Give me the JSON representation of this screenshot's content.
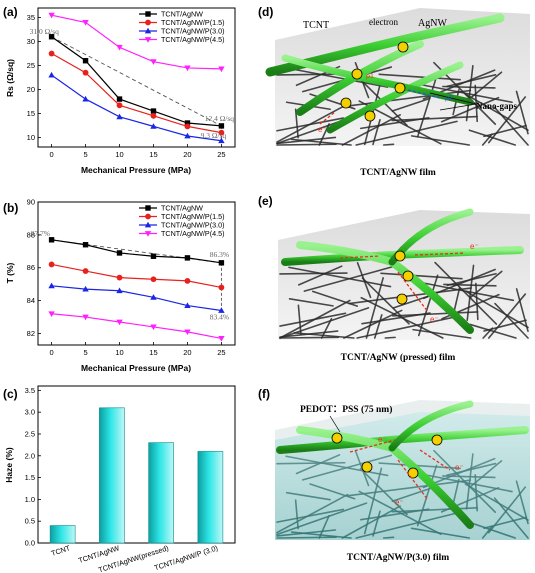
{
  "panel_labels": {
    "a": "(a)",
    "b": "(b)",
    "c": "(c)",
    "d": "(d)",
    "e": "(e)",
    "f": "(f)"
  },
  "chart_data": [
    {
      "type": "line",
      "panel": "a",
      "xlabel": "Mechanical Pressure (MPa)",
      "ylabel": "Rs (Ω/sq)",
      "x": [
        0,
        5,
        10,
        15,
        20,
        25
      ],
      "xticks": [
        "0",
        "5",
        "10",
        "15",
        "20",
        "25"
      ],
      "yticks": [
        "10",
        "15",
        "20",
        "25",
        "30",
        "35"
      ],
      "xlim": [
        -2,
        27
      ],
      "ylim": [
        8,
        37
      ],
      "grid": false,
      "legend_position": "top-right",
      "series": [
        {
          "name": "TCNT/AgNW",
          "color": "#000000",
          "marker": "square",
          "values": [
            31.0,
            26.0,
            18.0,
            15.5,
            13.0,
            12.4
          ]
        },
        {
          "name": "TCNT/AgNW/P(1.5)",
          "color": "#e8211c",
          "marker": "circle",
          "values": [
            27.5,
            23.5,
            16.7,
            14.5,
            12.3,
            11.0
          ]
        },
        {
          "name": "TCNT/AgNW/P(3.0)",
          "color": "#1a25e6",
          "marker": "triangle",
          "values": [
            23.0,
            18.0,
            14.3,
            12.3,
            10.3,
            9.3
          ]
        },
        {
          "name": "TCNT/AgNW/P(4.5)",
          "color": "#ff20ff",
          "marker": "triangle-down",
          "values": [
            35.5,
            34.0,
            28.8,
            25.8,
            24.5,
            24.3
          ]
        }
      ],
      "annotations": [
        {
          "text": "31.0 Ω/sq",
          "x": 0,
          "y": 31.0
        },
        {
          "text": "12.4 Ω/sq",
          "x": 25,
          "y": 12.4
        },
        {
          "text": "9.3 Ω/sq",
          "x": 25,
          "y": 9.3
        }
      ]
    },
    {
      "type": "line",
      "panel": "b",
      "xlabel": "Mechanical Pressure (MPa)",
      "ylabel": "T (%)",
      "x": [
        0,
        5,
        10,
        15,
        20,
        25
      ],
      "xticks": [
        "0",
        "5",
        "10",
        "15",
        "20",
        "25"
      ],
      "yticks": [
        "82",
        "84",
        "86",
        "88",
        "90"
      ],
      "xlim": [
        -2,
        27
      ],
      "ylim": [
        81.3,
        90
      ],
      "grid": false,
      "legend_position": "top-right",
      "series": [
        {
          "name": "TCNT/AgNW",
          "color": "#000000",
          "marker": "square",
          "values": [
            87.7,
            87.4,
            86.9,
            86.7,
            86.6,
            86.3
          ]
        },
        {
          "name": "TCNT/AgNW/P(1.5)",
          "color": "#e8211c",
          "marker": "circle",
          "values": [
            86.2,
            85.8,
            85.4,
            85.3,
            85.2,
            84.8
          ]
        },
        {
          "name": "TCNT/AgNW/P(3.0)",
          "color": "#1a25e6",
          "marker": "triangle",
          "values": [
            84.9,
            84.7,
            84.6,
            84.2,
            83.7,
            83.4
          ]
        },
        {
          "name": "TCNT/AgNW/P(4.5)",
          "color": "#ff20ff",
          "marker": "triangle-down",
          "values": [
            83.2,
            83.0,
            82.7,
            82.4,
            82.1,
            81.7
          ]
        }
      ],
      "annotations": [
        {
          "text": "87.7%",
          "x": 0,
          "y": 87.7
        },
        {
          "text": "86.3%",
          "x": 25,
          "y": 86.3
        },
        {
          "text": "83.4%",
          "x": 25,
          "y": 83.4
        }
      ]
    },
    {
      "type": "bar",
      "panel": "c",
      "ylabel": "Haze (%)",
      "categories": [
        "TCNT",
        "TCNT/AgNW",
        "TCNT/AgNW(pressed)",
        "TCNT/AgNW/P (3.0)"
      ],
      "values": [
        0.4,
        3.1,
        2.3,
        2.1
      ],
      "yticks": [
        "0.0",
        "0.5",
        "1.0",
        "1.5",
        "2.0",
        "2.5",
        "3.0",
        "3.5"
      ],
      "ylim": [
        0,
        3.6
      ],
      "grid": false
    }
  ],
  "illustrations": {
    "d": {
      "labels": {
        "tcnt": "TCNT",
        "electron": "electron",
        "agnw": "AgNW",
        "nanogaps": "Nano-gaps",
        "rho": "ρ1",
        "rho2": "ρ2",
        "e1": "e⁻",
        "e2": "e⁻"
      },
      "caption": "TCNT/AgNW film"
    },
    "e": {
      "labels": {
        "e1": "e⁻",
        "e2": "e⁻"
      },
      "caption": "TCNT/AgNW (pressed) film"
    },
    "f": {
      "labels": {
        "pedot": "PEDOT：PSS (75 nm)",
        "e1": "e⁻",
        "e2": "e⁻",
        "e3": "e⁻"
      },
      "caption": "TCNT/AgNW/P(3.0) film"
    }
  },
  "colors": {
    "tube": "#3ccf32",
    "tube_dark": "#1f8a1a",
    "mesh": "#2b2b2b",
    "electron": "#f5d000",
    "arrow": "#e4321c",
    "bar_light": "#c9f8f8",
    "bar_dark": "#10c9c9",
    "pedot": "#7fd3d3"
  }
}
